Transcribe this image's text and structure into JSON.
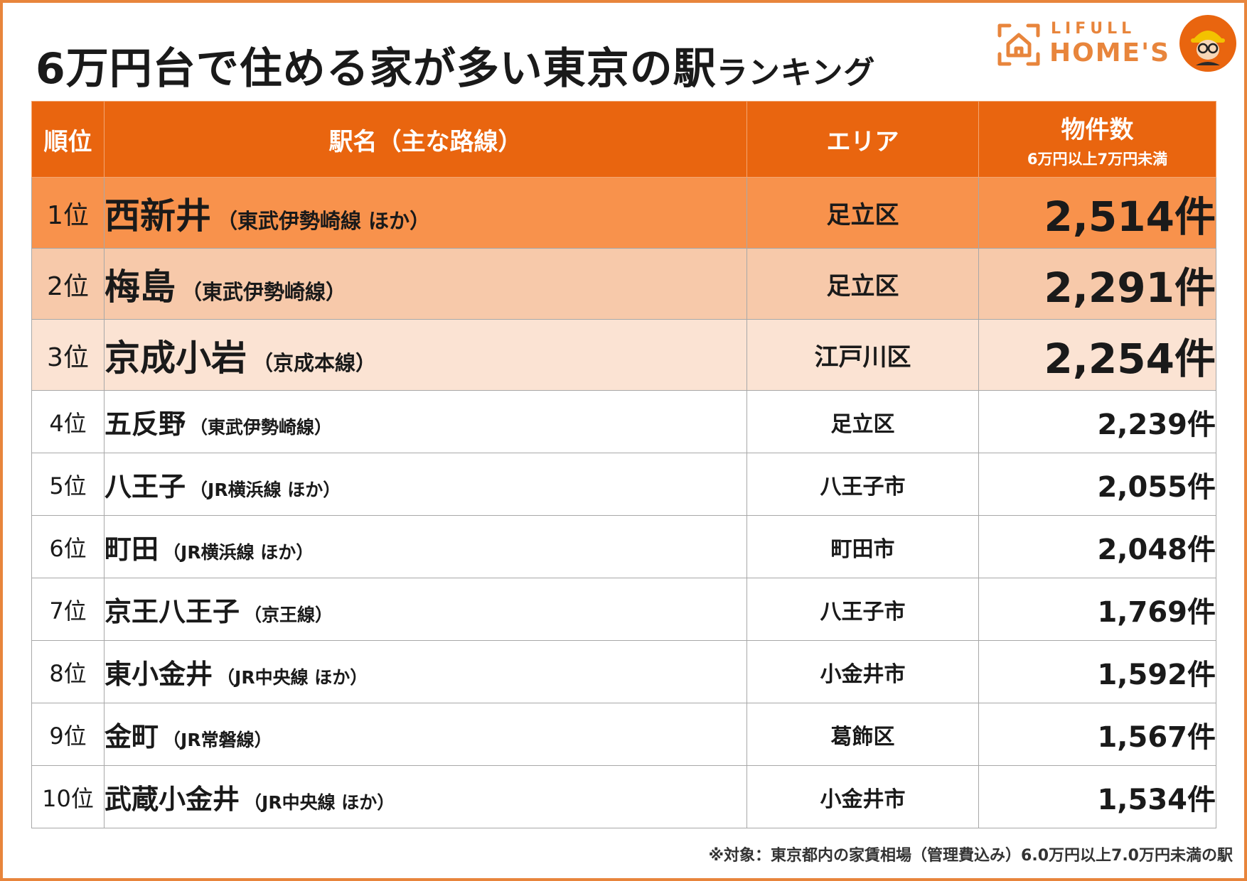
{
  "title": {
    "main": "6万円台で住める家が多い東京の駅",
    "suffix": "ランキング"
  },
  "logo": {
    "line1": "LIFULL",
    "line2": "HOME'S",
    "mark_icon": "house-frame-icon",
    "mascot_icon": "mascot-icon"
  },
  "colors": {
    "header": "#e9650f",
    "rank1": "#f8924c",
    "rank2": "#f7c9aa",
    "rank3": "#fbe3d3",
    "accent": "#e8853c"
  },
  "table": {
    "headers": {
      "rank": "順位",
      "station": "駅名（主な路線）",
      "area": "エリア",
      "count": "物件数",
      "count_sub": "6万円以上7万円未満"
    },
    "rows": [
      {
        "rank": "1位",
        "station": "西新井",
        "line": "（東武伊勢崎線 ほか）",
        "area": "足立区",
        "count": "2,514件"
      },
      {
        "rank": "2位",
        "station": "梅島",
        "line": "（東武伊勢崎線）",
        "area": "足立区",
        "count": "2,291件"
      },
      {
        "rank": "3位",
        "station": "京成小岩",
        "line": "（京成本線）",
        "area": "江戸川区",
        "count": "2,254件"
      },
      {
        "rank": "4位",
        "station": "五反野",
        "line": "（東武伊勢崎線）",
        "area": "足立区",
        "count": "2,239件"
      },
      {
        "rank": "5位",
        "station": "八王子",
        "line": "（JR横浜線 ほか）",
        "area": "八王子市",
        "count": "2,055件"
      },
      {
        "rank": "6位",
        "station": "町田",
        "line": "（JR横浜線 ほか）",
        "area": "町田市",
        "count": "2,048件"
      },
      {
        "rank": "7位",
        "station": "京王八王子",
        "line": "（京王線）",
        "area": "八王子市",
        "count": "1,769件"
      },
      {
        "rank": "8位",
        "station": "東小金井",
        "line": "（JR中央線 ほか）",
        "area": "小金井市",
        "count": "1,592件"
      },
      {
        "rank": "9位",
        "station": "金町",
        "line": "（JR常磐線）",
        "area": "葛飾区",
        "count": "1,567件"
      },
      {
        "rank": "10位",
        "station": "武蔵小金井",
        "line": "（JR中央線 ほか）",
        "area": "小金井市",
        "count": "1,534件"
      }
    ]
  },
  "footnote": "※対象：東京都内の家賃相場（管理費込み）6.0万円以上7.0万円未満の駅",
  "chart_data": {
    "type": "table",
    "title": "6万円台で住める家が多い東京の駅ランキング",
    "columns": [
      "順位",
      "駅名（主な路線）",
      "エリア",
      "物件数"
    ],
    "categories": [
      "西新井",
      "梅島",
      "京成小岩",
      "五反野",
      "八王子",
      "町田",
      "京王八王子",
      "東小金井",
      "金町",
      "武蔵小金井"
    ],
    "values": [
      2514,
      2291,
      2254,
      2239,
      2055,
      2048,
      1769,
      1592,
      1567,
      1534
    ]
  }
}
